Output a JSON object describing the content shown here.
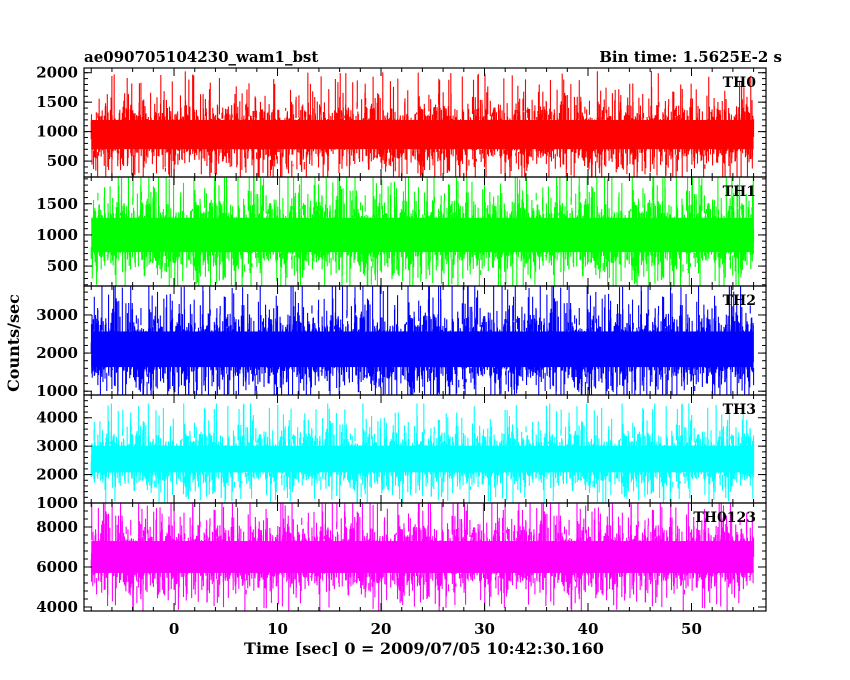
{
  "header": {
    "left_title": "ae090705104230_wam1_bst",
    "right_title": "Bin time: 1.5625E-2 s"
  },
  "chart_data": {
    "type": "line",
    "ylabel": "Counts/sec",
    "xlabel": "Time [sec] 0 = 2009/07/05 10:42:30.160",
    "xlim": [
      -8.7,
      57.2
    ],
    "x_range_data": [
      -8.0,
      56.0
    ],
    "bin_time_s": 0.015625,
    "xticks": [
      0,
      10,
      20,
      30,
      40,
      50
    ],
    "panels": [
      {
        "name": "TH0",
        "color": "#ff0000",
        "ylim": [
          230,
          2080
        ],
        "yticks": [
          500,
          1000,
          1500,
          2000
        ],
        "center": 950,
        "spread": 450,
        "max": 2150,
        "min": 180
      },
      {
        "name": "TH1",
        "color": "#00ff00",
        "ylim": [
          180,
          1930
        ],
        "yticks": [
          500,
          1000,
          1500
        ],
        "center": 1000,
        "spread": 500,
        "max": 1930,
        "min": 180
      },
      {
        "name": "TH2",
        "color": "#0000ff",
        "ylim": [
          900,
          3760
        ],
        "yticks": [
          1000,
          2000,
          3000
        ],
        "center": 2100,
        "spread": 850,
        "max": 3760,
        "min": 900
      },
      {
        "name": "TH3",
        "color": "#00ffff",
        "ylim": [
          1000,
          4800
        ],
        "yticks": [
          1000,
          2000,
          3000,
          4000
        ],
        "center": 2550,
        "spread": 850,
        "max": 4500,
        "min": 1000
      },
      {
        "name": "TH0123",
        "color": "#ff00ff",
        "ylim": [
          3800,
          9200
        ],
        "yticks": [
          4000,
          6000,
          8000
        ],
        "center": 6500,
        "spread": 1450,
        "max": 9200,
        "min": 3800
      }
    ]
  }
}
